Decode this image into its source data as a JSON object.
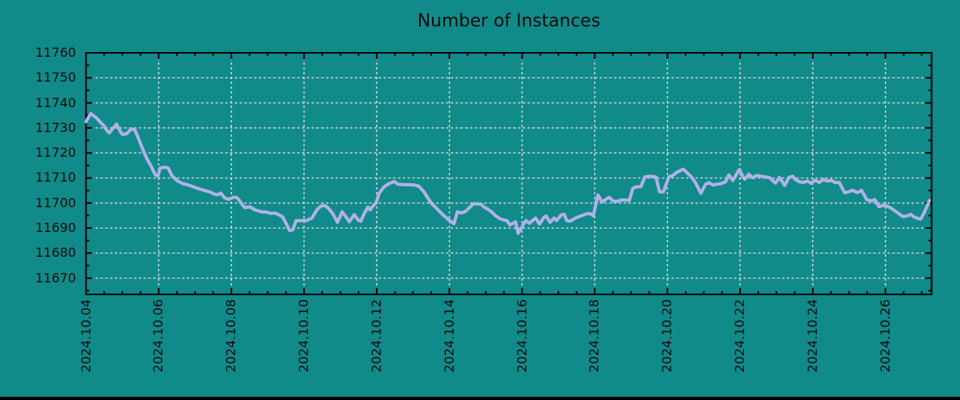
{
  "title": "Number of Instances",
  "colors": {
    "background": "#118a8a",
    "line": "#b1b1e8",
    "grid": "#d4d4d4",
    "axis": "#000000",
    "text": "#0b0b0b"
  },
  "chart_data": {
    "type": "line",
    "title": "Number of Instances",
    "xlabel": "",
    "ylabel": "",
    "legend": "none",
    "grid": true,
    "x_unit": "days since 2024.10.04",
    "xlim": [
      0,
      23.27
    ],
    "ylim": [
      11663.5,
      11760
    ],
    "x_tick_days": [
      0,
      2,
      4,
      6,
      8,
      10,
      12,
      14,
      16,
      18,
      20,
      22
    ],
    "x_tick_labels": [
      "2024.10.04",
      "2024.10.06",
      "2024.10.08",
      "2024.10.10",
      "2024.10.12",
      "2024.10.14",
      "2024.10.16",
      "2024.10.18",
      "2024.10.20",
      "2024.10.22",
      "2024.10.24",
      "2024.10.26"
    ],
    "y_ticks": [
      11760,
      11750,
      11740,
      11730,
      11720,
      11710,
      11700,
      11690,
      11680,
      11670
    ],
    "x_minor_step": 0.5,
    "y_minor_step": 5,
    "series": [
      {
        "name": "Number of Instances",
        "points": [
          [
            0.0,
            11732.5
          ],
          [
            0.13,
            11735.7
          ],
          [
            0.29,
            11734.0
          ],
          [
            0.4,
            11732.2
          ],
          [
            0.51,
            11730.6
          ],
          [
            0.57,
            11729.0
          ],
          [
            0.64,
            11728.0
          ],
          [
            0.75,
            11730.0
          ],
          [
            0.84,
            11731.5
          ],
          [
            0.95,
            11728.4
          ],
          [
            1.01,
            11727.4
          ],
          [
            1.12,
            11727.7
          ],
          [
            1.23,
            11729.4
          ],
          [
            1.34,
            11729.5
          ],
          [
            1.45,
            11725.5
          ],
          [
            1.56,
            11721.5
          ],
          [
            1.67,
            11717.8
          ],
          [
            1.78,
            11715.0
          ],
          [
            1.85,
            11713.0
          ],
          [
            1.91,
            11711.2
          ],
          [
            1.98,
            11710.8
          ],
          [
            2.04,
            11714.0
          ],
          [
            2.18,
            11714.3
          ],
          [
            2.26,
            11714.0
          ],
          [
            2.37,
            11710.8
          ],
          [
            2.53,
            11708.7
          ],
          [
            2.66,
            11707.8
          ],
          [
            2.79,
            11707.3
          ],
          [
            2.97,
            11706.4
          ],
          [
            3.12,
            11705.6
          ],
          [
            3.27,
            11705.0
          ],
          [
            3.43,
            11704.3
          ],
          [
            3.54,
            11703.5
          ],
          [
            3.63,
            11703.3
          ],
          [
            3.71,
            11704.0
          ],
          [
            3.82,
            11702.0
          ],
          [
            3.93,
            11701.5
          ],
          [
            4.04,
            11702.2
          ],
          [
            4.13,
            11702.3
          ],
          [
            4.2,
            11701.5
          ],
          [
            4.29,
            11699.5
          ],
          [
            4.37,
            11698.2
          ],
          [
            4.51,
            11698.5
          ],
          [
            4.64,
            11697.3
          ],
          [
            4.75,
            11696.8
          ],
          [
            4.86,
            11696.4
          ],
          [
            4.97,
            11696.4
          ],
          [
            5.08,
            11695.8
          ],
          [
            5.19,
            11696.0
          ],
          [
            5.3,
            11695.4
          ],
          [
            5.41,
            11694.5
          ],
          [
            5.52,
            11691.5
          ],
          [
            5.6,
            11689.0
          ],
          [
            5.69,
            11689.3
          ],
          [
            5.78,
            11693.0
          ],
          [
            5.91,
            11693.0
          ],
          [
            6.07,
            11693.0
          ],
          [
            6.22,
            11694.0
          ],
          [
            6.37,
            11697.6
          ],
          [
            6.48,
            11698.9
          ],
          [
            6.59,
            11698.9
          ],
          [
            6.68,
            11697.8
          ],
          [
            6.79,
            11695.8
          ],
          [
            6.92,
            11692.3
          ],
          [
            7.05,
            11696.5
          ],
          [
            7.19,
            11693.8
          ],
          [
            7.25,
            11692.5
          ],
          [
            7.38,
            11695.4
          ],
          [
            7.49,
            11693.2
          ],
          [
            7.56,
            11692.7
          ],
          [
            7.67,
            11696.2
          ],
          [
            7.76,
            11698.4
          ],
          [
            7.82,
            11697.2
          ],
          [
            7.91,
            11699.0
          ],
          [
            7.98,
            11700.0
          ],
          [
            8.07,
            11704.0
          ],
          [
            8.2,
            11706.4
          ],
          [
            8.33,
            11707.7
          ],
          [
            8.48,
            11708.6
          ],
          [
            8.59,
            11707.5
          ],
          [
            8.75,
            11707.3
          ],
          [
            8.9,
            11707.3
          ],
          [
            9.03,
            11707.2
          ],
          [
            9.16,
            11706.7
          ],
          [
            9.3,
            11704.5
          ],
          [
            9.41,
            11701.9
          ],
          [
            9.52,
            11699.7
          ],
          [
            9.63,
            11698.1
          ],
          [
            9.74,
            11696.5
          ],
          [
            9.85,
            11694.9
          ],
          [
            9.96,
            11693.6
          ],
          [
            10.07,
            11692.3
          ],
          [
            10.13,
            11691.7
          ],
          [
            10.22,
            11696.5
          ],
          [
            10.33,
            11696.0
          ],
          [
            10.44,
            11696.6
          ],
          [
            10.57,
            11698.4
          ],
          [
            10.66,
            11699.7
          ],
          [
            10.79,
            11699.7
          ],
          [
            10.88,
            11699.4
          ],
          [
            10.95,
            11698.4
          ],
          [
            11.05,
            11697.6
          ],
          [
            11.16,
            11696.5
          ],
          [
            11.27,
            11694.9
          ],
          [
            11.38,
            11693.9
          ],
          [
            11.47,
            11693.3
          ],
          [
            11.58,
            11693.0
          ],
          [
            11.67,
            11691.2
          ],
          [
            11.74,
            11691.8
          ],
          [
            11.82,
            11692.5
          ],
          [
            11.89,
            11687.9
          ],
          [
            11.96,
            11689.5
          ],
          [
            12.04,
            11691.6
          ],
          [
            12.11,
            11693.0
          ],
          [
            12.2,
            11691.9
          ],
          [
            12.31,
            11693.3
          ],
          [
            12.37,
            11694.0
          ],
          [
            12.48,
            11691.6
          ],
          [
            12.59,
            11694.0
          ],
          [
            12.66,
            11694.8
          ],
          [
            12.77,
            11692.3
          ],
          [
            12.88,
            11694.0
          ],
          [
            12.95,
            11693.0
          ],
          [
            13.08,
            11695.3
          ],
          [
            13.16,
            11695.5
          ],
          [
            13.23,
            11693.0
          ],
          [
            13.32,
            11692.7
          ],
          [
            13.47,
            11694.0
          ],
          [
            13.63,
            11694.9
          ],
          [
            13.76,
            11695.6
          ],
          [
            13.87,
            11695.8
          ],
          [
            13.96,
            11694.9
          ],
          [
            14.09,
            11703.2
          ],
          [
            14.2,
            11700.4
          ],
          [
            14.29,
            11701.3
          ],
          [
            14.4,
            11702.3
          ],
          [
            14.51,
            11700.7
          ],
          [
            14.62,
            11700.7
          ],
          [
            14.73,
            11701.2
          ],
          [
            14.86,
            11701.2
          ],
          [
            14.95,
            11701.0
          ],
          [
            15.05,
            11705.9
          ],
          [
            15.16,
            11706.5
          ],
          [
            15.27,
            11706.5
          ],
          [
            15.38,
            11710.4
          ],
          [
            15.49,
            11710.7
          ],
          [
            15.63,
            11710.6
          ],
          [
            15.69,
            11710.3
          ],
          [
            15.78,
            11704.5
          ],
          [
            15.89,
            11704.5
          ],
          [
            16.04,
            11710.4
          ],
          [
            16.15,
            11711.0
          ],
          [
            16.26,
            11712.3
          ],
          [
            16.44,
            11713.5
          ],
          [
            16.55,
            11711.9
          ],
          [
            16.66,
            11710.4
          ],
          [
            16.77,
            11708.2
          ],
          [
            16.92,
            11703.9
          ],
          [
            17.05,
            11707.5
          ],
          [
            17.14,
            11708.1
          ],
          [
            17.25,
            11707.2
          ],
          [
            17.36,
            11707.5
          ],
          [
            17.49,
            11707.8
          ],
          [
            17.6,
            11708.5
          ],
          [
            17.69,
            11711.2
          ],
          [
            17.8,
            11709.0
          ],
          [
            17.98,
            11713.4
          ],
          [
            18.09,
            11710.2
          ],
          [
            18.13,
            11709.5
          ],
          [
            18.24,
            11711.5
          ],
          [
            18.35,
            11710.1
          ],
          [
            18.46,
            11711.0
          ],
          [
            18.59,
            11710.7
          ],
          [
            18.7,
            11710.4
          ],
          [
            18.81,
            11710.2
          ],
          [
            18.97,
            11707.9
          ],
          [
            19.08,
            11710.2
          ],
          [
            19.23,
            11707.0
          ],
          [
            19.34,
            11710.2
          ],
          [
            19.45,
            11710.7
          ],
          [
            19.52,
            11709.4
          ],
          [
            19.63,
            11708.5
          ],
          [
            19.74,
            11708.2
          ],
          [
            19.85,
            11708.8
          ],
          [
            19.96,
            11707.9
          ],
          [
            20.07,
            11709.1
          ],
          [
            20.18,
            11708.2
          ],
          [
            20.29,
            11709.4
          ],
          [
            20.4,
            11708.8
          ],
          [
            20.51,
            11709.0
          ],
          [
            20.62,
            11708.2
          ],
          [
            20.73,
            11708.2
          ],
          [
            20.88,
            11704.1
          ],
          [
            20.99,
            11704.5
          ],
          [
            21.1,
            11705.1
          ],
          [
            21.23,
            11704.1
          ],
          [
            21.34,
            11705.1
          ],
          [
            21.49,
            11701.3
          ],
          [
            21.6,
            11700.9
          ],
          [
            21.71,
            11701.3
          ],
          [
            21.82,
            11698.6
          ],
          [
            21.93,
            11699.0
          ],
          [
            22.04,
            11698.8
          ],
          [
            22.15,
            11698.0
          ],
          [
            22.26,
            11696.9
          ],
          [
            22.37,
            11695.7
          ],
          [
            22.48,
            11694.6
          ],
          [
            22.59,
            11694.8
          ],
          [
            22.7,
            11695.5
          ],
          [
            22.77,
            11694.6
          ],
          [
            22.88,
            11693.9
          ],
          [
            22.97,
            11693.6
          ],
          [
            23.08,
            11696.6
          ],
          [
            23.21,
            11701.0
          ]
        ]
      }
    ]
  }
}
